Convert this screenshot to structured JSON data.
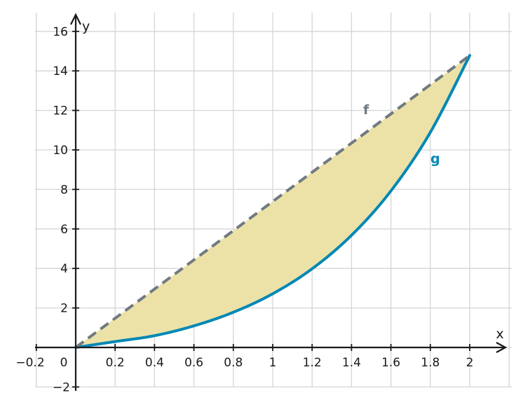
{
  "chart_data": {
    "type": "area",
    "xlabel": "x",
    "ylabel": "y",
    "xlim": [
      -0.2,
      2.2
    ],
    "ylim": [
      -2,
      16.5
    ],
    "x_ticks": [
      0.2,
      0.4,
      0.6,
      0.8,
      1,
      1.2,
      1.4,
      1.6,
      1.8,
      2
    ],
    "x_tick_labels": [
      "0.2",
      "0.4",
      "0.6",
      "0.8",
      "1",
      "1.2",
      "1.4",
      "1.6",
      "1.8",
      "2"
    ],
    "x_neg_label": "−0.2",
    "origin_label": "0",
    "y_ticks": [
      2,
      4,
      6,
      8,
      10,
      12,
      14,
      16
    ],
    "y_tick_labels": [
      "2",
      "4",
      "6",
      "8",
      "10",
      "12",
      "14",
      "16"
    ],
    "y_neg_label": "−2",
    "grid": true,
    "series": [
      {
        "name": "f",
        "style": "dashed",
        "color": "#707a80",
        "x": [
          0,
          2
        ],
        "y": [
          0,
          14.78
        ]
      },
      {
        "name": "g",
        "style": "solid",
        "color": "#0088b5",
        "x": [
          0,
          0.2,
          0.4,
          0.6,
          0.8,
          1.0,
          1.2,
          1.4,
          1.6,
          1.8,
          2.0
        ],
        "y": [
          0,
          0.298,
          0.596,
          1.093,
          1.781,
          2.718,
          3.984,
          5.68,
          7.925,
          10.89,
          14.78
        ]
      }
    ],
    "fill_between": {
      "color": "#ece2a8",
      "between": [
        "f",
        "g"
      ],
      "x_range": [
        0,
        2
      ]
    },
    "annotations": [
      {
        "text": "f",
        "color": "#707a80"
      },
      {
        "text": "g",
        "color": "#0088b5"
      }
    ]
  }
}
